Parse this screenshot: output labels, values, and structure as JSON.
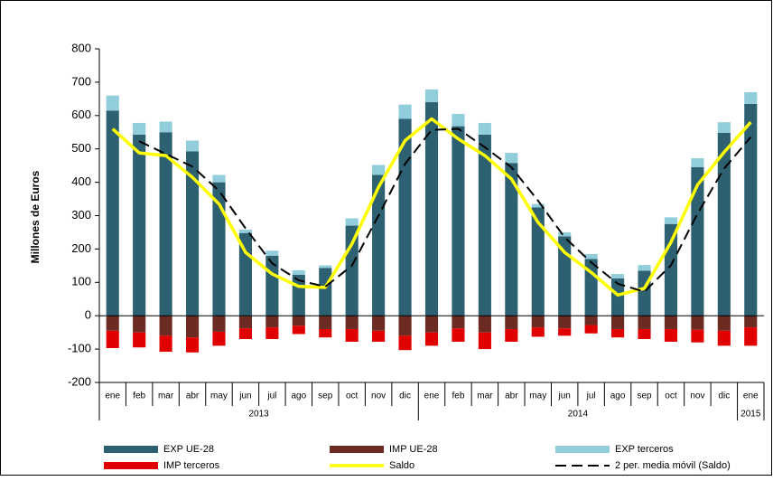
{
  "chart_data": {
    "type": "bar",
    "stacked": true,
    "y_label": "Millones de Euros",
    "category_groups": [
      {
        "label": "2013",
        "categories": [
          "ene",
          "feb",
          "mar",
          "abr",
          "may",
          "jun",
          "jul",
          "ago",
          "sep",
          "oct",
          "nov",
          "dic"
        ]
      },
      {
        "label": "2014",
        "categories": [
          "ene",
          "feb",
          "mar",
          "abr",
          "may",
          "jun",
          "jul",
          "ago",
          "sep",
          "oct",
          "nov",
          "dic"
        ]
      },
      {
        "label": "2015",
        "categories": [
          "ene"
        ]
      }
    ],
    "ylim": [
      -200,
      800
    ],
    "yticks": [
      -200,
      -100,
      0,
      100,
      200,
      300,
      400,
      500,
      600,
      700,
      800
    ],
    "series": [
      {
        "name": "EXP UE-28",
        "type": "bar",
        "color": "#2d6171",
        "values": [
          615,
          543,
          550,
          493,
          400,
          248,
          180,
          123,
          143,
          270,
          422,
          590,
          640,
          568,
          543,
          458,
          325,
          238,
          170,
          112,
          135,
          275,
          445,
          548,
          635
        ]
      },
      {
        "name": "IMP UE-28",
        "type": "bar",
        "color": "#6b2a22",
        "values": [
          -45,
          -50,
          -60,
          -65,
          -48,
          -38,
          -35,
          -30,
          -40,
          -40,
          -45,
          -60,
          -50,
          -38,
          -50,
          -40,
          -35,
          -38,
          -28,
          -40,
          -40,
          -40,
          -42,
          -45,
          -35
        ]
      },
      {
        "name": "EXP terceros",
        "type": "bar",
        "color": "#92cddc",
        "values": [
          45,
          35,
          32,
          32,
          22,
          10,
          15,
          13,
          8,
          22,
          30,
          43,
          38,
          37,
          35,
          30,
          10,
          12,
          15,
          13,
          17,
          20,
          27,
          32,
          35
        ]
      },
      {
        "name": "IMP terceros",
        "type": "bar",
        "color": "#e00000",
        "values": [
          -52,
          -45,
          -48,
          -45,
          -42,
          -32,
          -35,
          -25,
          -25,
          -38,
          -33,
          -43,
          -40,
          -40,
          -50,
          -38,
          -28,
          -22,
          -25,
          -25,
          -30,
          -38,
          -38,
          -45,
          -55
        ]
      },
      {
        "name": "Saldo",
        "type": "line",
        "color": "#ffff00",
        "values": [
          560,
          488,
          480,
          415,
          335,
          190,
          125,
          88,
          85,
          215,
          385,
          525,
          590,
          530,
          480,
          410,
          280,
          190,
          130,
          62,
          82,
          220,
          392,
          490,
          580
        ]
      },
      {
        "name": "2 per. media móvil (Saldo)",
        "type": "line",
        "line_style": "dashed",
        "color": "#000000",
        "values": [
          null,
          523,
          485,
          447,
          375,
          262,
          157,
          106,
          87,
          150,
          300,
          455,
          557,
          560,
          505,
          445,
          345,
          235,
          160,
          96,
          72,
          151,
          306,
          441,
          535
        ]
      }
    ]
  }
}
